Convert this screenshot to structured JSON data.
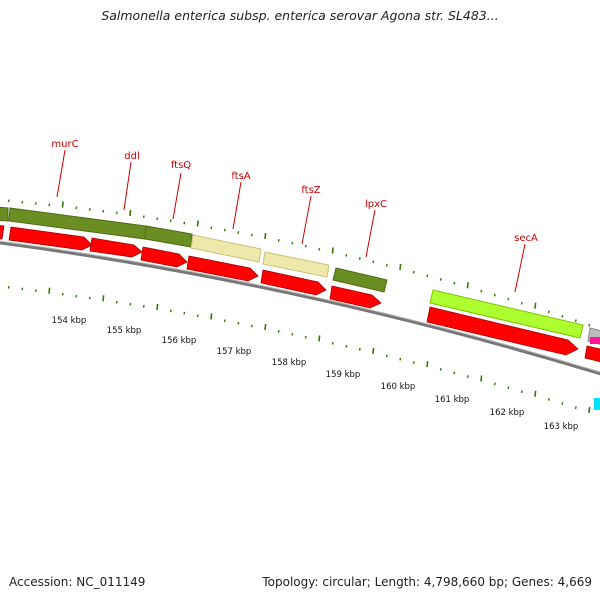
{
  "header": {
    "title": "Salmonella enterica subsp. enterica serovar Agona str. SL483..."
  },
  "footer": {
    "accession": "Accession: NC_011149",
    "summary": "Topology: circular; Length: 4,798,660 bp; Genes: 4,669"
  },
  "colors": {
    "gene_dark_green": "#6b8e23",
    "gene_light_yellow": "#eee8aa",
    "gene_lime": "#adff2f",
    "cds_red": "#ff0000",
    "backbone_gray": "#777777",
    "tick_green": "#2e7d00",
    "label_red": "#cc0000"
  },
  "genes": [
    {
      "name": "murC"
    },
    {
      "name": "ddl"
    },
    {
      "name": "ftsQ"
    },
    {
      "name": "ftsA"
    },
    {
      "name": "ftsZ"
    },
    {
      "name": "lpxC"
    },
    {
      "name": "secA"
    }
  ],
  "scale_labels": [
    "154 kbp",
    "155 kbp",
    "156 kbp",
    "157 kbp",
    "158 kbp",
    "159 kbp",
    "160 kbp",
    "161 kbp",
    "162 kbp",
    "163 kbp"
  ]
}
